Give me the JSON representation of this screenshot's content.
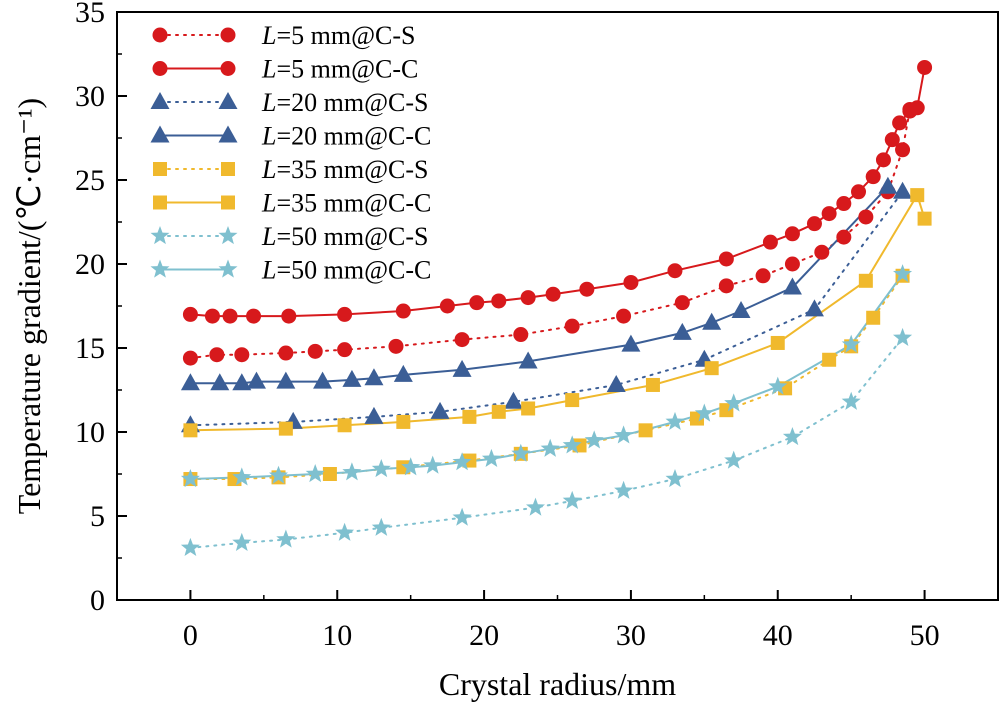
{
  "chart_data": {
    "type": "line",
    "xlabel": "Crystal radius/mm",
    "ylabel": "Temperature gradient/(℃·cm⁻¹)",
    "xlim": [
      -5,
      55
    ],
    "ylim": [
      0,
      35
    ],
    "xticks": [
      0,
      10,
      20,
      30,
      40,
      50
    ],
    "yticks": [
      0,
      5,
      10,
      15,
      20,
      25,
      30,
      35
    ],
    "grid": false,
    "legend_position": "top-left",
    "series": [
      {
        "name": "L=5 mm@C-S",
        "color": "#d7191c",
        "marker": "circle",
        "linestyle": "dotted",
        "x": [
          0,
          1.8,
          3.5,
          6.5,
          8.5,
          10.5,
          14,
          18.5,
          22.5,
          26,
          29.5,
          33.5,
          36.5,
          39,
          41,
          43,
          44.5,
          46,
          47.5,
          48.5,
          49
        ],
        "y": [
          14.4,
          14.6,
          14.6,
          14.7,
          14.8,
          14.9,
          15.1,
          15.5,
          15.8,
          16.3,
          16.9,
          17.7,
          18.7,
          19.3,
          20.0,
          20.7,
          21.6,
          22.8,
          24.3,
          26.8,
          29.2
        ]
      },
      {
        "name": "L=5 mm@C-C",
        "color": "#d7191c",
        "marker": "circle",
        "linestyle": "solid",
        "x": [
          0,
          1.5,
          2.7,
          4.3,
          6.7,
          10.5,
          14.5,
          17.5,
          19.5,
          21,
          23,
          24.7,
          27,
          30,
          33,
          36.5,
          39.5,
          41,
          42.5,
          43.5,
          44.5,
          45.5,
          46.5,
          47.2,
          47.8,
          48.3,
          49,
          49.5,
          50
        ],
        "y": [
          17.0,
          16.9,
          16.9,
          16.9,
          16.9,
          17.0,
          17.2,
          17.5,
          17.7,
          17.8,
          18.0,
          18.2,
          18.5,
          18.9,
          19.6,
          20.3,
          21.3,
          21.8,
          22.4,
          23.0,
          23.6,
          24.3,
          25.2,
          26.2,
          27.4,
          28.4,
          29.1,
          29.3,
          31.7
        ]
      },
      {
        "name": "L=20 mm@C-S",
        "color": "#3b5e96",
        "marker": "triangle",
        "linestyle": "dotted",
        "x": [
          0,
          7,
          12.5,
          17,
          22,
          29,
          35,
          42.5,
          48.5
        ],
        "y": [
          10.4,
          10.6,
          10.9,
          11.2,
          11.8,
          12.8,
          14.3,
          17.3,
          24.3
        ]
      },
      {
        "name": "L=20 mm@C-C",
        "color": "#3b5e96",
        "marker": "triangle",
        "linestyle": "solid",
        "x": [
          0,
          2,
          3.5,
          4.5,
          6.5,
          9,
          11,
          12.5,
          14.5,
          18.5,
          23,
          30,
          33.5,
          35.5,
          37.5,
          41,
          47.5
        ],
        "y": [
          12.9,
          12.9,
          12.9,
          13.0,
          13.0,
          13.0,
          13.1,
          13.2,
          13.4,
          13.7,
          14.2,
          15.2,
          15.9,
          16.5,
          17.2,
          18.6,
          24.6
        ]
      },
      {
        "name": "L=35 mm@C-S",
        "color": "#f0b92d",
        "marker": "square",
        "linestyle": "dotted",
        "x": [
          0,
          3,
          6,
          9.5,
          14.5,
          19,
          22.5,
          26.5,
          31,
          34.5,
          36.5,
          40.5,
          43.5,
          45,
          46.5,
          48.5
        ],
        "y": [
          7.2,
          7.2,
          7.3,
          7.5,
          7.9,
          8.3,
          8.7,
          9.2,
          10.1,
          10.8,
          11.3,
          12.6,
          14.3,
          15.1,
          16.8,
          19.3
        ]
      },
      {
        "name": "L=35 mm@C-C",
        "color": "#f0b92d",
        "marker": "square",
        "linestyle": "solid",
        "x": [
          0,
          6.5,
          10.5,
          14.5,
          19,
          21,
          23,
          26,
          31.5,
          35.5,
          40,
          46,
          49.5,
          50
        ],
        "y": [
          10.1,
          10.2,
          10.4,
          10.6,
          10.9,
          11.2,
          11.4,
          11.9,
          12.8,
          13.8,
          15.3,
          19.0,
          24.1,
          22.7
        ]
      },
      {
        "name": "L=50 mm@C-S",
        "color": "#7fc0cf",
        "marker": "star",
        "linestyle": "dotted",
        "x": [
          0,
          3.5,
          6.5,
          10.5,
          13,
          18.5,
          23.5,
          26,
          29.5,
          33,
          37,
          41,
          45,
          48.5
        ],
        "y": [
          3.1,
          3.4,
          3.6,
          4.0,
          4.3,
          4.9,
          5.5,
          5.9,
          6.5,
          7.2,
          8.3,
          9.7,
          11.8,
          15.6
        ]
      },
      {
        "name": "L=50 mm@C-C",
        "color": "#7fc0cf",
        "marker": "star",
        "linestyle": "solid",
        "x": [
          0,
          3.5,
          6,
          8.5,
          11,
          13,
          15,
          16.5,
          18.5,
          20.5,
          22.5,
          24.5,
          26,
          27.5,
          29.5,
          33,
          35,
          37,
          40,
          45,
          48.5
        ],
        "y": [
          7.2,
          7.3,
          7.4,
          7.5,
          7.6,
          7.8,
          7.9,
          8.0,
          8.2,
          8.4,
          8.7,
          9.0,
          9.2,
          9.5,
          9.8,
          10.6,
          11.1,
          11.7,
          12.7,
          15.2,
          19.4
        ]
      }
    ]
  }
}
